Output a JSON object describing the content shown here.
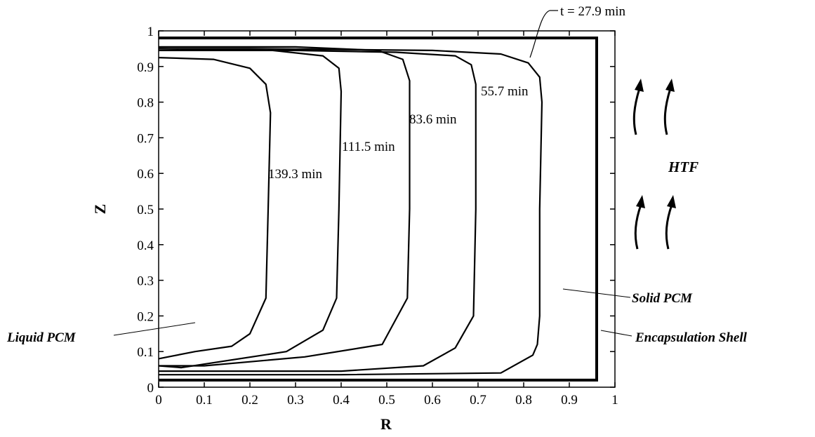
{
  "chart_data": {
    "type": "line",
    "title": "",
    "xlabel": "R",
    "ylabel": "Z",
    "xlim": [
      0,
      1
    ],
    "ylim": [
      0,
      1
    ],
    "x_ticks": [
      "0",
      "0.1",
      "0.2",
      "0.3",
      "0.4",
      "0.5",
      "0.6",
      "0.7",
      "0.8",
      "0.9",
      "1"
    ],
    "y_ticks": [
      "0",
      "0.1",
      "0.2",
      "0.3",
      "0.4",
      "0.5",
      "0.6",
      "0.7",
      "0.8",
      "0.9",
      "1"
    ],
    "grid": false,
    "legend": "none",
    "series": [
      {
        "name": "t = 27.9 min",
        "x": [
          0,
          0.2,
          0.6,
          0.75,
          0.81,
          0.835,
          0.84,
          0.835,
          0.835,
          0.83,
          0.82,
          0.75,
          0.4,
          0
        ],
        "y": [
          0.95,
          0.95,
          0.945,
          0.935,
          0.91,
          0.87,
          0.8,
          0.5,
          0.2,
          0.12,
          0.09,
          0.04,
          0.035,
          0.035
        ]
      },
      {
        "name": "55.7 min",
        "x": [
          0,
          0.3,
          0.52,
          0.65,
          0.685,
          0.695,
          0.695,
          0.69,
          0.65,
          0.58,
          0.4,
          0
        ],
        "y": [
          0.945,
          0.945,
          0.94,
          0.93,
          0.905,
          0.85,
          0.5,
          0.2,
          0.11,
          0.06,
          0.045,
          0.045
        ]
      },
      {
        "name": "83.6 min",
        "x": [
          0,
          0.3,
          0.48,
          0.535,
          0.55,
          0.55,
          0.545,
          0.49,
          0.32,
          0.1,
          0
        ],
        "y": [
          0.955,
          0.955,
          0.945,
          0.92,
          0.86,
          0.5,
          0.25,
          0.12,
          0.085,
          0.06,
          0.06
        ]
      },
      {
        "name": "111.5 min",
        "x": [
          0,
          0.25,
          0.36,
          0.395,
          0.4,
          0.395,
          0.39,
          0.36,
          0.28,
          0.05,
          0
        ],
        "y": [
          0.95,
          0.945,
          0.93,
          0.895,
          0.83,
          0.5,
          0.25,
          0.16,
          0.1,
          0.055,
          0.06
        ]
      },
      {
        "name": "139.3 min",
        "x": [
          0,
          0.12,
          0.2,
          0.235,
          0.245,
          0.24,
          0.235,
          0.2,
          0.16,
          0.08,
          0
        ],
        "y": [
          0.925,
          0.92,
          0.895,
          0.85,
          0.77,
          0.5,
          0.25,
          0.15,
          0.115,
          0.1,
          0.08
        ]
      }
    ],
    "annotations": {
      "liquid": "Liquid PCM",
      "solid": "Solid PCM",
      "shell": "Encapsulation Shell",
      "htf": "HTF"
    },
    "shell": {
      "r_outer": 0.96,
      "z_bottom": 0.02,
      "z_top": 0.98
    }
  }
}
